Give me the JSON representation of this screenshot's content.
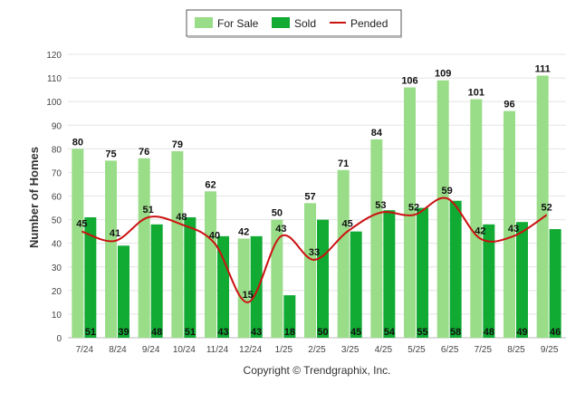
{
  "chart_data": {
    "type": "bar",
    "title": "",
    "xlabel": "",
    "ylabel": "Number of Homes",
    "ylim": [
      0,
      120
    ],
    "ytick_step": 10,
    "categories": [
      "7/24",
      "8/24",
      "9/24",
      "10/24",
      "11/24",
      "12/24",
      "1/25",
      "2/25",
      "3/25",
      "4/25",
      "5/25",
      "6/25",
      "7/25",
      "8/25",
      "9/25"
    ],
    "series": [
      {
        "name": "For Sale",
        "kind": "bar",
        "color": "#99dd88",
        "values": [
          80,
          75,
          76,
          79,
          62,
          42,
          50,
          57,
          71,
          84,
          106,
          109,
          101,
          96,
          111
        ]
      },
      {
        "name": "Sold",
        "kind": "bar",
        "color": "#11aa33",
        "values": [
          51,
          39,
          48,
          51,
          43,
          43,
          18,
          50,
          45,
          54,
          55,
          58,
          48,
          49,
          46
        ]
      },
      {
        "name": "Pended",
        "kind": "line",
        "color": "#cc1111",
        "values": [
          45,
          41,
          51,
          48,
          40,
          15,
          43,
          33,
          45,
          53,
          52,
          59,
          42,
          43,
          52
        ]
      }
    ],
    "legend_position": "top-center",
    "grid": true,
    "footer": "Copyright © Trendgraphix, Inc."
  }
}
